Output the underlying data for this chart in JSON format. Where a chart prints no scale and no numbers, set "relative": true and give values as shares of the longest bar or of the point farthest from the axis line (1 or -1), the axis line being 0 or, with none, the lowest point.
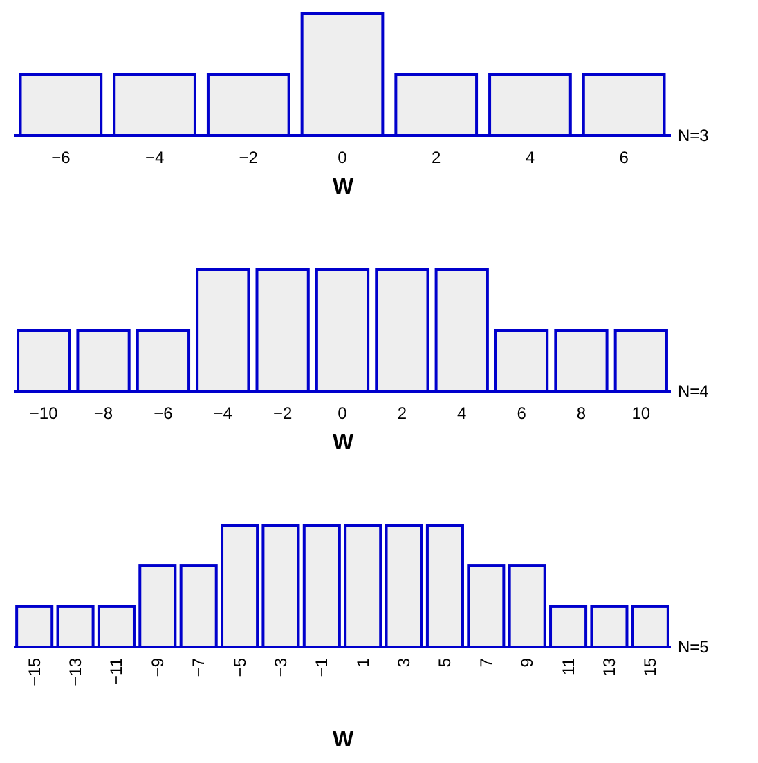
{
  "chart_data": [
    {
      "type": "bar",
      "relative": true,
      "categories": [
        "−6",
        "−4",
        "−2",
        "0",
        "2",
        "4",
        "6"
      ],
      "values": [
        0.5,
        0.5,
        0.5,
        1,
        0.5,
        0.5,
        0.5
      ],
      "color": "#eeeeee",
      "xlabel": "W",
      "annotations": [
        "N=3"
      ]
    },
    {
      "type": "bar",
      "relative": true,
      "categories": [
        "−10",
        "−8",
        "−6",
        "−4",
        "−2",
        "0",
        "2",
        "4",
        "6",
        "8",
        "10"
      ],
      "values": [
        0.5,
        0.5,
        0.5,
        1,
        1,
        1,
        1,
        1,
        0.5,
        0.5,
        0.5
      ],
      "color": "#eeeeee",
      "xlabel": "W",
      "annotations": [
        "N=4"
      ]
    },
    {
      "type": "bar",
      "relative": true,
      "categories": [
        "−15",
        "−13",
        "−11",
        "−9",
        "−7",
        "−5",
        "−3",
        "−1",
        "1",
        "3",
        "5",
        "7",
        "9",
        "11",
        "13",
        "15"
      ],
      "values": [
        0.33,
        0.33,
        0.33,
        0.67,
        0.67,
        1,
        1,
        1,
        1,
        1,
        1,
        0.67,
        0.67,
        0.33,
        0.33,
        0.33
      ],
      "color": "#eeeeee",
      "xlabel": "W",
      "annotations": [
        "N=5"
      ]
    }
  ]
}
